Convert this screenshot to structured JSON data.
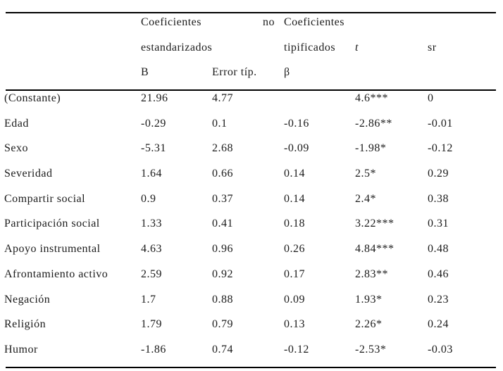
{
  "colors": {
    "background": "#ffffff",
    "text": "#1b1b1b",
    "rule": "#000000"
  },
  "table": {
    "header": {
      "group_unstandardized": {
        "line1_left": "Coeficientes",
        "line1_right": "no",
        "line2": "estandarizados"
      },
      "group_standardized": {
        "line1": "Coeficientes",
        "line2": "tipificados"
      },
      "t_label": "t",
      "sr_label": "sr",
      "sub_b": "B",
      "sub_error": "Error típ.",
      "sub_beta": "β"
    },
    "rows": [
      {
        "label": "(Constante)",
        "b": "21.96",
        "se": "4.77",
        "beta": "",
        "t": "4.6***",
        "sr": "0"
      },
      {
        "label": "Edad",
        "b": "-0.29",
        "se": "0.1",
        "beta": "-0.16",
        "t": "-2.86**",
        "sr": "-0.01"
      },
      {
        "label": "Sexo",
        "b": "-5.31",
        "se": "2.68",
        "beta": "-0.09",
        "t": "-1.98*",
        "sr": "-0.12"
      },
      {
        "label": "Severidad",
        "b": "1.64",
        "se": "0.66",
        "beta": "0.14",
        "t": "2.5*",
        "sr": "0.29"
      },
      {
        "label": "Compartir social",
        "b": "0.9",
        "se": "0.37",
        "beta": "0.14",
        "t": "2.4*",
        "sr": "0.38"
      },
      {
        "label": "Participación social",
        "b": "1.33",
        "se": "0.41",
        "beta": "0.18",
        "t": "3.22***",
        "sr": "0.31"
      },
      {
        "label": "Apoyo instrumental",
        "b": "4.63",
        "se": "0.96",
        "beta": "0.26",
        "t": "4.84***",
        "sr": "0.48"
      },
      {
        "label": "Afrontamiento activo",
        "b": "2.59",
        "se": "0.92",
        "beta": "0.17",
        "t": "2.83**",
        "sr": "0.46"
      },
      {
        "label": "Negación",
        "b": "1.7",
        "se": "0.88",
        "beta": "0.09",
        "t": "1.93*",
        "sr": "0.23"
      },
      {
        "label": "Religión",
        "b": "1.79",
        "se": "0.79",
        "beta": "0.13",
        "t": "2.26*",
        "sr": "0.24"
      },
      {
        "label": "Humor",
        "b": "-1.86",
        "se": "0.74",
        "beta": "-0.12",
        "t": "-2.53*",
        "sr": "-0.03"
      }
    ]
  }
}
